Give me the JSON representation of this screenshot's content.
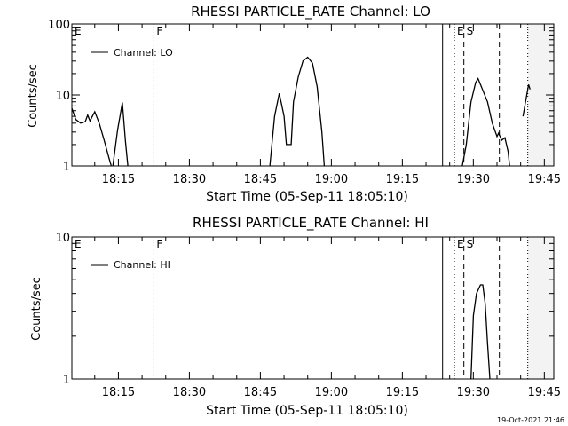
{
  "footer_timestamp": "19-Oct-2021 21:46",
  "chart_data": [
    {
      "type": "line",
      "title": "RHESSI PARTICLE_RATE Channel: LO",
      "xlabel": "Start Time (05-Sep-11 18:05:10)",
      "ylabel": "Counts/sec",
      "yscale": "log",
      "ylim": [
        1,
        100
      ],
      "xlim": [
        "18:05:10",
        "19:47:00"
      ],
      "x_ticks": [
        "18:15",
        "18:30",
        "18:45",
        "19:00",
        "19:15",
        "19:30",
        "19:45"
      ],
      "y_ticks": [
        "1",
        "10",
        "100"
      ],
      "legend": {
        "entries": [
          "Channel: LO"
        ],
        "placement": "top-left"
      },
      "markers": [
        {
          "label": "E",
          "time": "18:05:10",
          "style": "dotted"
        },
        {
          "label": "F",
          "time": "18:22:30",
          "style": "dotted"
        },
        {
          "label": "",
          "time": "19:23:30",
          "style": "solid"
        },
        {
          "label": "E",
          "time": "19:26:00",
          "style": "dotted"
        },
        {
          "label": "S",
          "time": "19:28:00",
          "style": "dashed"
        },
        {
          "label": "",
          "time": "19:35:30",
          "style": "dashed"
        },
        {
          "label": "",
          "time": "19:41:30",
          "style": "dotted"
        }
      ],
      "series": [
        {
          "segments": [
            [
              [
                "18:05:10",
                6.5
              ],
              [
                "18:06:00",
                4.5
              ],
              [
                "18:07:00",
                4.0
              ],
              [
                "18:08:00",
                4.2
              ],
              [
                "18:08:30",
                5.2
              ],
              [
                "18:09:00",
                4.3
              ],
              [
                "18:10:00",
                5.8
              ],
              [
                "18:11:00",
                3.9
              ],
              [
                "18:12:00",
                2.3
              ],
              [
                "18:13:00",
                1.3
              ],
              [
                "18:13:30",
                1.0
              ]
            ],
            [
              [
                "18:13:50",
                1.0
              ],
              [
                "18:14:50",
                3.2
              ],
              [
                "18:15:50",
                7.8
              ],
              [
                "18:16:30",
                2.2
              ],
              [
                "18:17:00",
                1.0
              ]
            ],
            [
              [
                "18:47:00",
                1.0
              ],
              [
                "18:48:00",
                5.0
              ],
              [
                "18:49:00",
                10.5
              ],
              [
                "18:50:00",
                5.0
              ],
              [
                "18:50:30",
                2.0
              ],
              [
                "18:51:30",
                2.0
              ],
              [
                "18:52:00",
                8.0
              ],
              [
                "18:53:00",
                18.0
              ],
              [
                "18:54:00",
                30.0
              ],
              [
                "18:55:00",
                34.0
              ],
              [
                "18:56:00",
                28.0
              ],
              [
                "18:57:00",
                13.0
              ],
              [
                "18:58:00",
                3.0
              ],
              [
                "18:58:30",
                1.0
              ]
            ],
            [
              [
                "19:27:40",
                1.0
              ],
              [
                "19:28:30",
                2.0
              ],
              [
                "19:29:30",
                8.0
              ],
              [
                "19:30:30",
                15.0
              ],
              [
                "19:31:00",
                17.0
              ],
              [
                "19:31:30",
                14.0
              ],
              [
                "19:33:00",
                8.0
              ],
              [
                "19:34:00",
                4.0
              ],
              [
                "19:35:00",
                2.6
              ],
              [
                "19:35:20",
                2.9
              ],
              [
                "19:36:00",
                2.3
              ],
              [
                "19:36:40",
                2.5
              ],
              [
                "19:37:20",
                1.6
              ],
              [
                "19:37:40",
                1.0
              ]
            ],
            [
              [
                "19:40:30",
                5.0
              ],
              [
                "19:41:40",
                14.0
              ],
              [
                "19:42:00",
                12.0
              ]
            ]
          ]
        }
      ]
    },
    {
      "type": "line",
      "title": "RHESSI PARTICLE_RATE Channel: HI",
      "xlabel": "Start Time (05-Sep-11 18:05:10)",
      "ylabel": "Counts/sec",
      "yscale": "log",
      "ylim": [
        1,
        10
      ],
      "xlim": [
        "18:05:10",
        "19:47:00"
      ],
      "x_ticks": [
        "18:15",
        "18:30",
        "18:45",
        "19:00",
        "19:15",
        "19:30",
        "19:45"
      ],
      "y_ticks": [
        "1",
        "10"
      ],
      "legend": {
        "entries": [
          "Channel: HI"
        ],
        "placement": "top-left"
      },
      "markers": [
        {
          "label": "E",
          "time": "18:05:10",
          "style": "dotted"
        },
        {
          "label": "F",
          "time": "18:22:30",
          "style": "dotted"
        },
        {
          "label": "",
          "time": "19:23:30",
          "style": "solid"
        },
        {
          "label": "E",
          "time": "19:26:00",
          "style": "dotted"
        },
        {
          "label": "S",
          "time": "19:28:00",
          "style": "dashed"
        },
        {
          "label": "",
          "time": "19:35:30",
          "style": "dashed"
        },
        {
          "label": "",
          "time": "19:41:30",
          "style": "dotted"
        }
      ],
      "series": [
        {
          "segments": [
            [
              [
                "19:29:30",
                1.0
              ],
              [
                "19:30:00",
                2.8
              ],
              [
                "19:30:40",
                4.0
              ],
              [
                "19:31:30",
                4.6
              ],
              [
                "19:32:00",
                4.6
              ],
              [
                "19:32:30",
                3.4
              ],
              [
                "19:33:00",
                1.8
              ],
              [
                "19:33:30",
                1.0
              ]
            ]
          ]
        }
      ]
    }
  ]
}
